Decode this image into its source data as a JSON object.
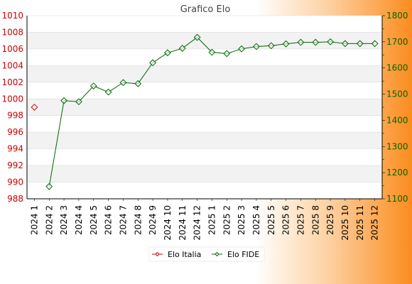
{
  "chart_data": {
    "type": "line",
    "title": "Grafico Elo",
    "categories": [
      "2024 1",
      "2024 2",
      "2024 3",
      "2024 4",
      "2024 5",
      "2024 6",
      "2024 7",
      "2024 8",
      "2024 9",
      "2024 10",
      "2024 11",
      "2024 12",
      "2025 1",
      "2025 2",
      "2025 3",
      "2025 4",
      "2025 5",
      "2025 6",
      "2025 7",
      "2025 8",
      "2025 9",
      "2025 10",
      "2025 11",
      "2025 12"
    ],
    "y_left": {
      "range": [
        988,
        1010
      ],
      "ticks": [
        988,
        990,
        992,
        994,
        996,
        998,
        1000,
        1002,
        1004,
        1006,
        1008,
        1010
      ],
      "color": "#cc0000"
    },
    "y_right": {
      "range": [
        1100,
        1800
      ],
      "ticks": [
        1100,
        1200,
        1300,
        1400,
        1500,
        1600,
        1700,
        1800
      ],
      "color": "#006600"
    },
    "grid": true,
    "legend_position": "bottom-center",
    "series": [
      {
        "name": "Elo Italia",
        "axis": "left",
        "color": "#cc0000",
        "values": [
          999,
          null,
          null,
          null,
          null,
          null,
          null,
          null,
          null,
          null,
          null,
          null,
          null,
          null,
          null,
          null,
          null,
          null,
          null,
          null,
          null,
          null,
          null,
          null
        ]
      },
      {
        "name": "Elo FIDE",
        "axis": "right",
        "color": "#006600",
        "values": [
          null,
          1147,
          1475,
          1471,
          1531,
          1508,
          1544,
          1540,
          1620,
          1658,
          1675,
          1717,
          1660,
          1655,
          1673,
          1682,
          1685,
          1692,
          1698,
          1698,
          1700,
          1693,
          1693,
          1693
        ]
      }
    ]
  }
}
